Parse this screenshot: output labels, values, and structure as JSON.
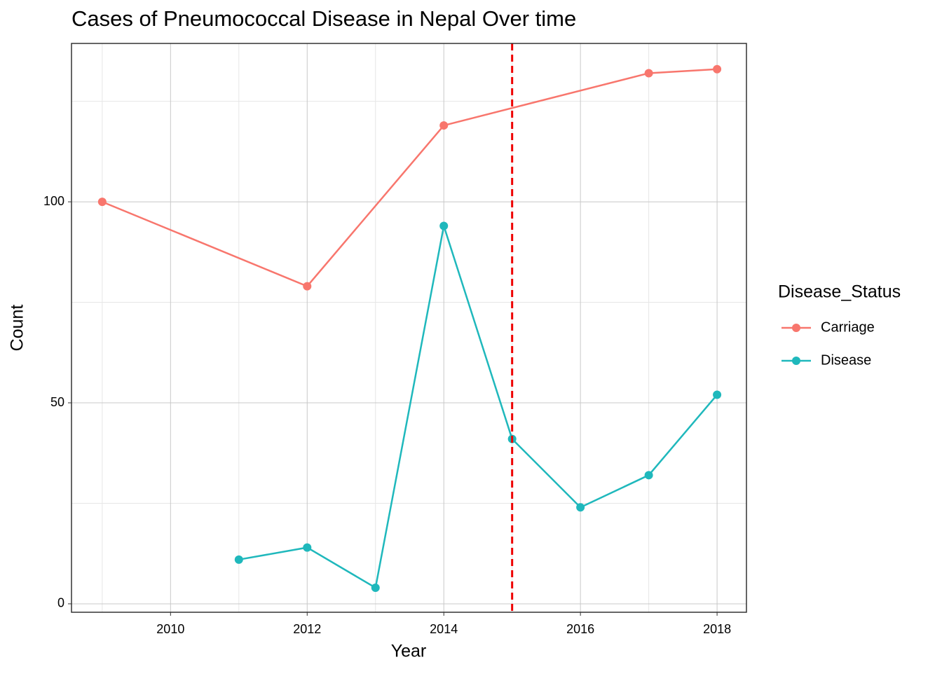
{
  "chart_data": {
    "type": "line",
    "title": "Cases of Pneumococcal Disease in Nepal Over time",
    "x_label": "Year",
    "y_label": "Count",
    "series": [
      {
        "name": "Carriage",
        "color": "#f8766d",
        "x": [
          2009,
          2012,
          2014,
          2017,
          2018
        ],
        "values": [
          100,
          79,
          119,
          132,
          133
        ]
      },
      {
        "name": "Disease",
        "color": "#1fb8bc",
        "x": [
          2011,
          2012,
          2013,
          2014,
          2015,
          2016,
          2017,
          2018
        ],
        "values": [
          11,
          14,
          4,
          94,
          41,
          24,
          32,
          52
        ]
      }
    ],
    "xlim": [
      2008.55,
      2018.43
    ],
    "xticks": [
      2010,
      2012,
      2014,
      2016,
      2018
    ],
    "ylim": [
      -2.1,
      139.4
    ],
    "yticks": [
      0,
      50,
      100
    ],
    "vline": {
      "x": 2015,
      "color": "#ee0000"
    },
    "grid": true,
    "legend_title": "Disease_Status",
    "legend": "right"
  }
}
